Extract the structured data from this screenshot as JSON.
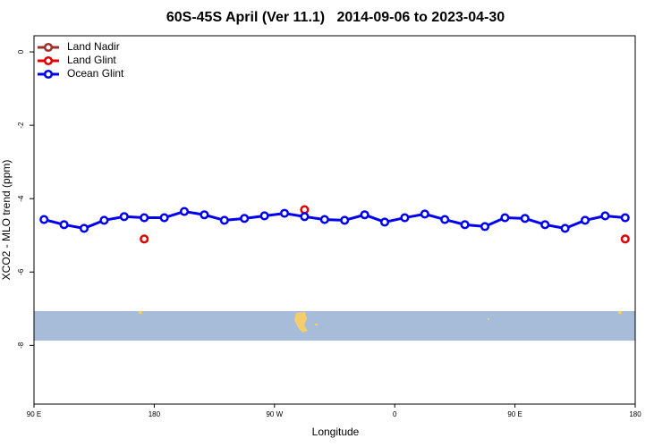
{
  "chart_data": {
    "type": "line",
    "title": "60S-45S April (Ver 11.1)   2014-09-06 to 2023-04-30",
    "xlabel": "Longitude",
    "ylabel": "XCO2 - MLO trend (ppm)",
    "x": [
      97.5,
      112.5,
      127.5,
      142.5,
      157.5,
      172.5,
      187.5,
      202.5,
      217.5,
      232.5,
      247.5,
      262.5,
      277.5,
      292.5,
      307.5,
      322.5,
      337.5,
      352.5,
      367.5,
      382.5,
      397.5,
      412.5,
      427.5,
      442.5,
      457.5,
      472.5,
      487.5,
      502.5,
      517.5,
      532.5
    ],
    "series": [
      {
        "name": "Land Nadir",
        "color": "#a0302a",
        "values": [
          null,
          null,
          null,
          null,
          null,
          null,
          null,
          null,
          null,
          null,
          null,
          null,
          null,
          null,
          null,
          null,
          null,
          null,
          null,
          null,
          null,
          null,
          null,
          null,
          null,
          null,
          null,
          null,
          null,
          null
        ]
      },
      {
        "name": "Land Glint",
        "color": "#e00000",
        "values": [
          null,
          null,
          null,
          null,
          null,
          -5.1,
          null,
          null,
          null,
          null,
          null,
          null,
          null,
          -4.3,
          null,
          null,
          null,
          null,
          null,
          null,
          null,
          null,
          null,
          null,
          null,
          null,
          null,
          null,
          null,
          -5.1
        ]
      },
      {
        "name": "Ocean Glint",
        "color": "#0000ee",
        "values": [
          -4.57,
          -4.71,
          -4.81,
          -4.59,
          -4.49,
          -4.52,
          -4.52,
          -4.35,
          -4.44,
          -4.59,
          -4.54,
          -4.47,
          -4.4,
          -4.49,
          -4.57,
          -4.59,
          -4.44,
          -4.64,
          -4.52,
          -4.42,
          -4.57,
          -4.71,
          -4.76,
          -4.52,
          -4.54,
          -4.71,
          -4.81,
          -4.59,
          -4.47,
          -4.52
        ]
      }
    ],
    "xlim": [
      90,
      540
    ],
    "xticks": [
      {
        "value": 90,
        "label": "90 E"
      },
      180,
      {
        "value": 270,
        "label": "90 W"
      },
      {
        "value": 360,
        "label": "0"
      },
      {
        "value": 450,
        "label": "90 E"
      },
      {
        "value": 540,
        "label": "180"
      }
    ],
    "ylim": [
      -9.6,
      0.44
    ],
    "yticks": [
      0,
      -2,
      -4,
      -6,
      -8
    ],
    "legend": "topleft",
    "grid": false
  }
}
